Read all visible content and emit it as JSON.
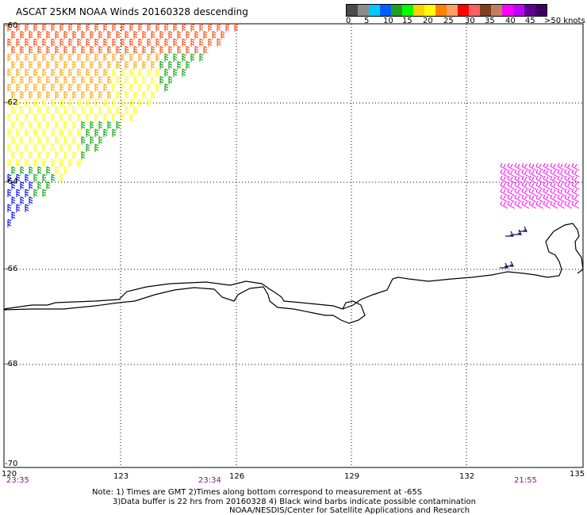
{
  "title": "ASCAT 25KM NOAA Winds 20160328 descending",
  "colorbar": {
    "colors": [
      "#4a4a4a",
      "#8c8c8c",
      "#00c8ff",
      "#0060ff",
      "#20a020",
      "#00ff00",
      "#ffd000",
      "#ffff00",
      "#ff8000",
      "#ffa060",
      "#ff0000",
      "#ff6060",
      "#804020",
      "#c08060",
      "#ff00ff",
      "#c000ff",
      "#600090",
      "#400060"
    ],
    "labels": [
      "0",
      "5",
      "10",
      "15",
      "20",
      "25",
      "30",
      "35",
      "40",
      "45",
      ">50 knots"
    ]
  },
  "lat_labels": [
    "-60",
    "-62",
    "-64",
    "-66",
    "-68",
    "-70"
  ],
  "lon_labels": [
    "120",
    "123",
    "126",
    "129",
    "132",
    "135"
  ],
  "time_labels": [
    "23:35",
    "23:34",
    "21:55"
  ],
  "notes": [
    "Note: 1) Times are GMT 2)Times along bottom correspond to measurement at -65S",
    "3)Data buffer is 22 hrs from 20160328 4) Black wind barbs indicate possible contamination",
    "NOAA/NESDIS/Center for Satellite Applications and Research"
  ],
  "wind_colors": {
    "calm": "#0000ff",
    "light": "#00a000",
    "moderate": "#ffff00",
    "fresh": "#ffa000",
    "strong": "#ff4000",
    "gale": "#c03030",
    "storm": "#ff00ff",
    "contaminated": "#000000",
    "east_cluster": "#200060"
  }
}
